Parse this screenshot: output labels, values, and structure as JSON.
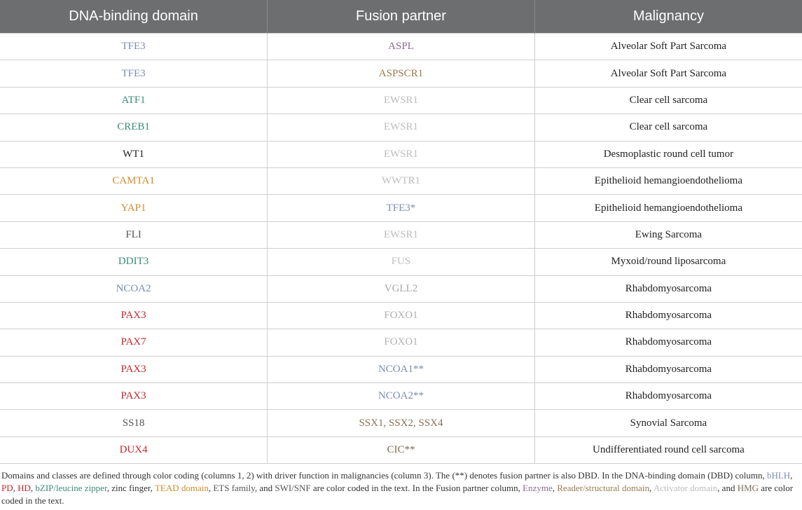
{
  "table": {
    "header": [
      "DNA-binding domain",
      "Fusion partner",
      "Malignancy"
    ],
    "rows": [
      [
        {
          "text": "TFE3",
          "color": "#7a8db3"
        },
        {
          "text": "ASPL",
          "color": "#8c6b8e"
        },
        {
          "text": "Alveolar Soft Part Sarcoma",
          "color": "#222222"
        }
      ],
      [
        {
          "text": "TFE3",
          "color": "#7a8db3"
        },
        {
          "text": "ASPSCR1",
          "color": "#9a7a4e"
        },
        {
          "text": "Alveolar Soft Part Sarcoma",
          "color": "#222222"
        }
      ],
      [
        {
          "text": "ATF1",
          "color": "#3b8a78"
        },
        {
          "text": "EWSR1",
          "color": "#bdbdbd"
        },
        {
          "text": "Clear cell sarcoma",
          "color": "#222222"
        }
      ],
      [
        {
          "text": "CREB1",
          "color": "#3b8a78"
        },
        {
          "text": "EWSR1",
          "color": "#bdbdbd"
        },
        {
          "text": "Clear cell sarcoma",
          "color": "#222222"
        }
      ],
      [
        {
          "text": "WT1",
          "color": "#222222"
        },
        {
          "text": "EWSR1",
          "color": "#bdbdbd"
        },
        {
          "text": "Desmoplastic round cell tumor",
          "color": "#222222"
        }
      ],
      [
        {
          "text": "CAMTA1",
          "color": "#d08a2b"
        },
        {
          "text": "WWTR1",
          "color": "#bdbdbd"
        },
        {
          "text": "Epithelioid hemangioendothelioma",
          "color": "#222222"
        }
      ],
      [
        {
          "text": "YAP1",
          "color": "#d08a2b"
        },
        {
          "text": "TFE3*",
          "color": "#7a8db3"
        },
        {
          "text": "Epithelioid hemangioendothelioma",
          "color": "#222222"
        }
      ],
      [
        {
          "text": "FLI",
          "color": "#555555"
        },
        {
          "text": "EWSR1",
          "color": "#bdbdbd"
        },
        {
          "text": "Ewing Sarcoma",
          "color": "#222222"
        }
      ],
      [
        {
          "text": "DDIT3",
          "color": "#3b8a78"
        },
        {
          "text": "FUS",
          "color": "#bdbdbd"
        },
        {
          "text": "Myxoid/round liposarcoma",
          "color": "#222222"
        }
      ],
      [
        {
          "text": "NCOA2",
          "color": "#7a8db3"
        },
        {
          "text": "VGLL2",
          "color": "#a8a8a8"
        },
        {
          "text": "Rhabdomyosarcoma",
          "color": "#222222"
        }
      ],
      [
        {
          "text": "PAX3",
          "color": "#c1272d"
        },
        {
          "text": "FOXO1",
          "color": "#b0b0b0"
        },
        {
          "text": "Rhabdomyosarcoma",
          "color": "#222222"
        }
      ],
      [
        {
          "text": "PAX7",
          "color": "#c1272d"
        },
        {
          "text": "FOXO1",
          "color": "#b0b0b0"
        },
        {
          "text": "Rhabdomyosarcoma",
          "color": "#222222"
        }
      ],
      [
        {
          "text": "PAX3",
          "color": "#c1272d"
        },
        {
          "text": "NCOA1**",
          "color": "#7a8db3"
        },
        {
          "text": "Rhabdomyosarcoma",
          "color": "#222222"
        }
      ],
      [
        {
          "text": "PAX3",
          "color": "#c1272d"
        },
        {
          "text": "NCOA2**",
          "color": "#7a8db3"
        },
        {
          "text": "Rhabdomyosarcoma",
          "color": "#222222"
        }
      ],
      [
        {
          "text": "SS18",
          "color": "#555555"
        },
        {
          "text": "SSX1, SSX2, SSX4",
          "color": "#8a7050"
        },
        {
          "text": "Synovial Sarcoma",
          "color": "#222222"
        }
      ],
      [
        {
          "text": "DUX4",
          "color": "#c1272d"
        },
        {
          "text": "CIC**",
          "color": "#7d6b52"
        },
        {
          "text": "Undifferentiated round cell sarcoma",
          "color": "#222222"
        }
      ]
    ]
  },
  "footnote": [
    {
      "text": "Domains and classes are defined through color coding (columns 1, 2) with driver function in malignancies (column 3). The (**) denotes fusion partner is also DBD. In the DNA-binding domain (DBD) column, ",
      "color": "#333333"
    },
    {
      "text": "bHLH",
      "color": "#7a8db3"
    },
    {
      "text": ", ",
      "color": "#333333"
    },
    {
      "text": "PD",
      "color": "#c1272d"
    },
    {
      "text": ", ",
      "color": "#333333"
    },
    {
      "text": "HD",
      "color": "#c1272d"
    },
    {
      "text": ", ",
      "color": "#333333"
    },
    {
      "text": "bZIP/leucine zipper",
      "color": "#3b8a78"
    },
    {
      "text": ", zinc finger, ",
      "color": "#333333"
    },
    {
      "text": "TEAD domain",
      "color": "#d08a2b"
    },
    {
      "text": ", ",
      "color": "#333333"
    },
    {
      "text": "ETS family",
      "color": "#555555"
    },
    {
      "text": ", and ",
      "color": "#333333"
    },
    {
      "text": "SWI/SNF",
      "color": "#555555"
    },
    {
      "text": " are color coded in the text. In the Fusion partner column, ",
      "color": "#333333"
    },
    {
      "text": "Enzyme",
      "color": "#8c6b8e"
    },
    {
      "text": ", ",
      "color": "#333333"
    },
    {
      "text": "Reader/structural domain",
      "color": "#9a7a4e"
    },
    {
      "text": ", ",
      "color": "#333333"
    },
    {
      "text": "Activator domain",
      "color": "#bdbdbd"
    },
    {
      "text": ", and ",
      "color": "#333333"
    },
    {
      "text": "HMG",
      "color": "#7d6b52"
    },
    {
      "text": " are color coded in the text.",
      "color": "#333333"
    }
  ]
}
